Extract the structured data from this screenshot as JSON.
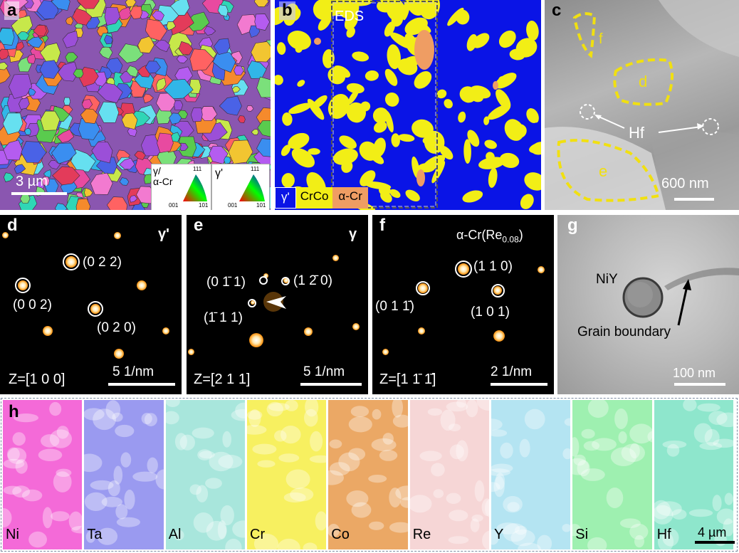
{
  "panel_a": {
    "label": "a",
    "scale": "3 µm",
    "legend1_title": "γ/\nα-Cr",
    "legend2_title": "γ'",
    "legend_tick_111": "111",
    "legend_tick_001": "001",
    "legend_tick_101": "101"
  },
  "panel_b": {
    "label": "b",
    "eds": "EDS",
    "legend_gamma_prime": "γ'",
    "legend_crco": "CrCo",
    "legend_alpha_cr": "α-Cr",
    "colors": {
      "gamma_prime": "#0a14e6",
      "crco": "#f2ee16",
      "alpha_cr": "#ef9d63"
    }
  },
  "panel_c": {
    "label": "c",
    "region_f": "f",
    "region_d": "d",
    "region_e": "e",
    "hf": "Hf",
    "scale": "600 nm"
  },
  "panel_d": {
    "label": "d",
    "phase": "γ'",
    "spot_022": "(0 2 2)",
    "spot_002": "(0 0 2)",
    "spot_020": "(0 2 0)",
    "zone": "Z=[1 0 0]",
    "scale": "5 1/nm"
  },
  "panel_e": {
    "label": "e",
    "phase": "γ",
    "spot_0m11": "(0 1̄ 1)",
    "spot_1m20": "(1 2̄ 0)",
    "spot_m111": "(1̄ 1 1)",
    "zone": "Z=[2 1 1]",
    "scale": "5 1/nm"
  },
  "panel_f": {
    "label": "f",
    "phase_main": "α-Cr(Re",
    "phase_sub": "0.08",
    "phase_close": ")",
    "spot_110": "(1 1 0)",
    "spot_01m1": "(0 1 1̄)",
    "spot_101": "(1 0 1)",
    "zone": "Z=[1 1̄ 1̄]",
    "scale": "2 1/nm"
  },
  "panel_g": {
    "label": "g",
    "niy": "NiY",
    "grain_boundary": "Grain boundary",
    "scale": "100 nm"
  },
  "panel_h": {
    "label": "h",
    "scale": "4 µm",
    "maps": [
      {
        "element": "Ni",
        "color": "#f46ad8"
      },
      {
        "element": "Ta",
        "color": "#9a9af0"
      },
      {
        "element": "Al",
        "color": "#a8e6dc"
      },
      {
        "element": "Cr",
        "color": "#f7f060"
      },
      {
        "element": "Co",
        "color": "#eba865"
      },
      {
        "element": "Re",
        "color": "#f6d6d6"
      },
      {
        "element": "Y",
        "color": "#b4e4f2"
      },
      {
        "element": "Si",
        "color": "#9ef0b0"
      },
      {
        "element": "Hf",
        "color": "#8ee6cc"
      }
    ]
  }
}
